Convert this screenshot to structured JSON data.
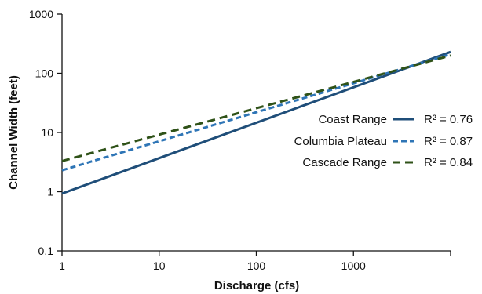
{
  "chart_data": {
    "type": "line",
    "xlabel": "Discharge (cfs)",
    "ylabel": "Channel Width (feet)",
    "xscale": "log",
    "yscale": "log",
    "xlim": [
      1,
      10000
    ],
    "ylim": [
      0.1,
      1000
    ],
    "x_ticks": [
      1,
      10,
      100,
      1000,
      10000
    ],
    "x_tick_labels": [
      "1",
      "10",
      "100",
      "1000",
      ""
    ],
    "y_ticks": [
      0.1,
      1,
      10,
      100,
      1000
    ],
    "y_tick_labels": [
      "0.1",
      "1",
      "10",
      "100",
      "1000"
    ],
    "grid": false,
    "legend_position": "right",
    "series": [
      {
        "name": "Coast Range",
        "r2_label": "R² = 0.76",
        "color": "#1f4e79",
        "dash": "solid",
        "x": [
          1,
          10000
        ],
        "y": [
          0.93,
          230
        ]
      },
      {
        "name": "Columbia Plateau",
        "r2_label": "R² = 0.87",
        "color": "#2e75b6",
        "dash": "dashed-short",
        "x": [
          1,
          10000
        ],
        "y": [
          2.3,
          210
        ]
      },
      {
        "name": "Cascade Range",
        "r2_label": "R² = 0.84",
        "color": "#2f5218",
        "dash": "dashed-long",
        "x": [
          1,
          10000
        ],
        "y": [
          3.3,
          200
        ]
      }
    ]
  }
}
